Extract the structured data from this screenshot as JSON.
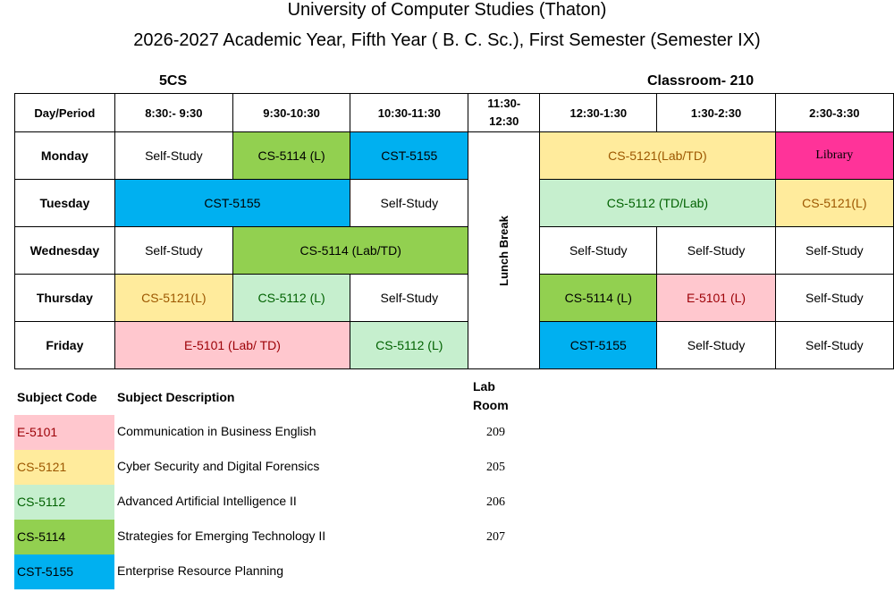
{
  "header": {
    "title": "University of Computer Studies (Thaton)",
    "subtitle": "2026-2027 Academic Year, Fifth Year ( B. C. Sc.), First Semester (Semester IX)",
    "class_label": "5CS",
    "classroom_label": "Classroom- 210"
  },
  "timetable": {
    "headers": [
      "Day/Period",
      "8:30:- 9:30",
      "9:30-10:30",
      "10:30-11:30",
      "11:30-\n12:30",
      "12:30-1:30",
      "1:30-2:30",
      "2:30-3:30"
    ],
    "break_label": "Lunch Break",
    "days": [
      "Monday",
      "Tuesday",
      "Wednesday",
      "Thursday",
      "Friday"
    ],
    "monday": [
      "Self-Study",
      "CS-5114 (L)",
      "CST-5155",
      "CS-5121(Lab/TD)",
      "Library"
    ],
    "tuesday": [
      "CST-5155",
      "Self-Study",
      "CS-5112 (TD/Lab)",
      "CS-5121(L)"
    ],
    "wednesday": [
      "Self-Study",
      "CS-5114 (Lab/TD)",
      "Self-Study",
      "Self-Study",
      "Self-Study"
    ],
    "thursday": [
      "CS-5121(L)",
      "CS-5112 (L)",
      "Self-Study",
      "CS-5114 (L)",
      "E-5101 (L)",
      "Self-Study"
    ],
    "friday": [
      "E-5101 (Lab/ TD)",
      "CS-5112 (L)",
      "CST-5155",
      "Self-Study",
      "Self-Study"
    ]
  },
  "legend": {
    "code_header": "Subject Code",
    "desc_header": "Subject Description",
    "room_header_1": "Lab",
    "room_header_2": "Room",
    "rows": [
      {
        "code": "E-5101",
        "desc": "Communication in Business English",
        "room": "209"
      },
      {
        "code": "CS-5121",
        "desc": "Cyber Security and Digital Forensics",
        "room": "205"
      },
      {
        "code": "CS-5112",
        "desc": "Advanced Artificial Intelligence II",
        "room": "206"
      },
      {
        "code": "CS-5114",
        "desc": "Strategies for Emerging Technology II",
        "room": "207"
      },
      {
        "code": "CST-5155",
        "desc": "Enterprise Resource Planning",
        "room": ""
      }
    ]
  },
  "colors": {
    "E-5101": "#ffc7ce",
    "CS-5121": "#ffeb9c",
    "CS-5112": "#c6efce",
    "CS-5114": "#92d050",
    "CST-5155": "#00b0f0",
    "Library": "#ff3399"
  }
}
